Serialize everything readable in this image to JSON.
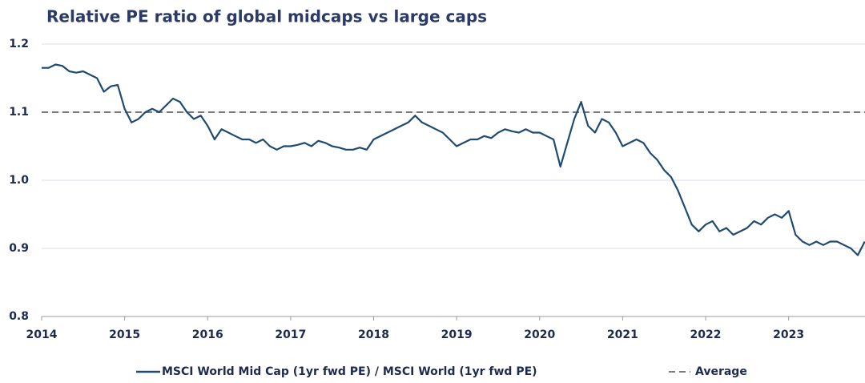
{
  "chart_data": {
    "type": "line",
    "title": "Relative PE ratio of global midcaps vs large caps",
    "x": [
      2014,
      2014.083,
      2014.167,
      2014.25,
      2014.333,
      2014.417,
      2014.5,
      2014.583,
      2014.667,
      2014.75,
      2014.833,
      2014.917,
      2015,
      2015.083,
      2015.167,
      2015.25,
      2015.333,
      2015.417,
      2015.5,
      2015.583,
      2015.667,
      2015.75,
      2015.833,
      2015.917,
      2016,
      2016.083,
      2016.167,
      2016.25,
      2016.333,
      2016.417,
      2016.5,
      2016.583,
      2016.667,
      2016.75,
      2016.833,
      2016.917,
      2017,
      2017.083,
      2017.167,
      2017.25,
      2017.333,
      2017.417,
      2017.5,
      2017.583,
      2017.667,
      2017.75,
      2017.833,
      2017.917,
      2018,
      2018.083,
      2018.167,
      2018.25,
      2018.333,
      2018.417,
      2018.5,
      2018.583,
      2018.667,
      2018.75,
      2018.833,
      2018.917,
      2019,
      2019.083,
      2019.167,
      2019.25,
      2019.333,
      2019.417,
      2019.5,
      2019.583,
      2019.667,
      2019.75,
      2019.833,
      2019.917,
      2020,
      2020.083,
      2020.167,
      2020.25,
      2020.333,
      2020.417,
      2020.5,
      2020.583,
      2020.667,
      2020.75,
      2020.833,
      2020.917,
      2021,
      2021.083,
      2021.167,
      2021.25,
      2021.333,
      2021.417,
      2021.5,
      2021.583,
      2021.667,
      2021.75,
      2021.833,
      2021.917,
      2022,
      2022.083,
      2022.167,
      2022.25,
      2022.333,
      2022.417,
      2022.5,
      2022.583,
      2022.667,
      2022.75,
      2022.833,
      2022.917,
      2023,
      2023.083,
      2023.167,
      2023.25,
      2023.333,
      2023.417,
      2023.5,
      2023.583,
      2023.667,
      2023.75,
      2023.833,
      2023.917
    ],
    "series": [
      {
        "name": "MSCI World Mid Cap (1yr fwd PE) / MSCI World (1yr fwd PE)",
        "color": "#1f4a72",
        "values": [
          1.165,
          1.165,
          1.17,
          1.168,
          1.16,
          1.158,
          1.16,
          1.155,
          1.15,
          1.13,
          1.138,
          1.14,
          1.105,
          1.085,
          1.09,
          1.1,
          1.105,
          1.1,
          1.11,
          1.12,
          1.115,
          1.1,
          1.09,
          1.095,
          1.08,
          1.06,
          1.075,
          1.07,
          1.065,
          1.06,
          1.06,
          1.055,
          1.06,
          1.05,
          1.045,
          1.05,
          1.05,
          1.052,
          1.055,
          1.05,
          1.058,
          1.055,
          1.05,
          1.048,
          1.045,
          1.045,
          1.048,
          1.045,
          1.06,
          1.065,
          1.07,
          1.075,
          1.08,
          1.085,
          1.095,
          1.085,
          1.08,
          1.075,
          1.07,
          1.06,
          1.05,
          1.055,
          1.06,
          1.06,
          1.065,
          1.062,
          1.07,
          1.075,
          1.072,
          1.07,
          1.075,
          1.07,
          1.07,
          1.065,
          1.06,
          1.02,
          1.055,
          1.09,
          1.115,
          1.08,
          1.07,
          1.09,
          1.085,
          1.07,
          1.05,
          1.055,
          1.06,
          1.055,
          1.04,
          1.03,
          1.015,
          1.005,
          0.985,
          0.96,
          0.935,
          0.925,
          0.935,
          0.94,
          0.925,
          0.93,
          0.92,
          0.925,
          0.93,
          0.94,
          0.935,
          0.945,
          0.95,
          0.945,
          0.955,
          0.92,
          0.91,
          0.905,
          0.91,
          0.905,
          0.91,
          0.91,
          0.905,
          0.9,
          0.89,
          0.91
        ]
      }
    ],
    "average": {
      "name": "Average",
      "value": 1.1,
      "color": "#7a7a7a"
    },
    "xlim": [
      2014,
      2023.92
    ],
    "xticks": [
      2014,
      2015,
      2016,
      2017,
      2018,
      2019,
      2020,
      2021,
      2022,
      2023
    ],
    "ylim": [
      0.8,
      1.2
    ],
    "yticks": [
      0.8,
      0.9,
      {
        "value": 1,
        "label": "1.0"
      },
      1.1,
      1.2
    ],
    "grid": true,
    "legend": "bottom"
  }
}
